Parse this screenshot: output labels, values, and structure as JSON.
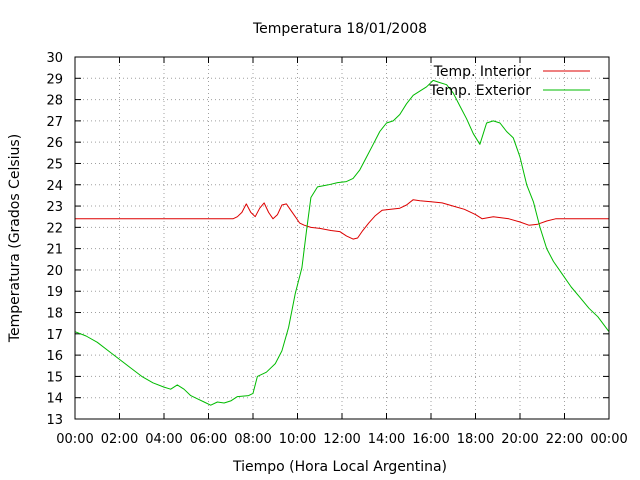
{
  "chart_data": {
    "type": "line",
    "title": "Temperatura 18/01/2008",
    "xlabel": "Tiempo (Hora Local Argentina)",
    "ylabel": "Temperatura (Grados Celsius)",
    "x_ticks": [
      "00:00",
      "02:00",
      "04:00",
      "06:00",
      "08:00",
      "10:00",
      "12:00",
      "14:00",
      "16:00",
      "18:00",
      "20:00",
      "22:00",
      "00:00"
    ],
    "xlim_hours": [
      0,
      24
    ],
    "ylim": [
      13,
      30
    ],
    "y_ticks": [
      13,
      14,
      15,
      16,
      17,
      18,
      19,
      20,
      21,
      22,
      23,
      24,
      25,
      26,
      27,
      28,
      29,
      30
    ],
    "grid": true,
    "legend_position": "top-right",
    "series": [
      {
        "name": "Temp. Interior",
        "color": "#dd0000",
        "points": [
          [
            0,
            22.4
          ],
          [
            7.1,
            22.4
          ],
          [
            7.3,
            22.5
          ],
          [
            7.5,
            22.7
          ],
          [
            7.7,
            23.1
          ],
          [
            7.9,
            22.7
          ],
          [
            8.1,
            22.5
          ],
          [
            8.3,
            22.9
          ],
          [
            8.5,
            23.15
          ],
          [
            8.7,
            22.7
          ],
          [
            8.9,
            22.4
          ],
          [
            9.1,
            22.6
          ],
          [
            9.3,
            23.05
          ],
          [
            9.5,
            23.1
          ],
          [
            9.7,
            22.8
          ],
          [
            9.9,
            22.5
          ],
          [
            10.1,
            22.2
          ],
          [
            10.3,
            22.1
          ],
          [
            10.6,
            22.0
          ],
          [
            11.0,
            21.95
          ],
          [
            11.5,
            21.85
          ],
          [
            11.9,
            21.8
          ],
          [
            12.2,
            21.6
          ],
          [
            12.5,
            21.45
          ],
          [
            12.7,
            21.5
          ],
          [
            12.9,
            21.8
          ],
          [
            13.2,
            22.2
          ],
          [
            13.5,
            22.55
          ],
          [
            13.8,
            22.8
          ],
          [
            14.2,
            22.85
          ],
          [
            14.6,
            22.9
          ],
          [
            14.9,
            23.05
          ],
          [
            15.2,
            23.3
          ],
          [
            15.5,
            23.25
          ],
          [
            16.0,
            23.2
          ],
          [
            16.5,
            23.15
          ],
          [
            17.0,
            23.0
          ],
          [
            17.5,
            22.85
          ],
          [
            18.0,
            22.6
          ],
          [
            18.3,
            22.4
          ],
          [
            18.8,
            22.5
          ],
          [
            19.5,
            22.4
          ],
          [
            20.0,
            22.25
          ],
          [
            20.4,
            22.1
          ],
          [
            20.8,
            22.15
          ],
          [
            21.2,
            22.3
          ],
          [
            21.6,
            22.4
          ],
          [
            24,
            22.4
          ]
        ]
      },
      {
        "name": "Temp. Exterior",
        "color": "#00bb00",
        "points": [
          [
            0,
            17.1
          ],
          [
            0.5,
            16.9
          ],
          [
            1.0,
            16.6
          ],
          [
            1.5,
            16.2
          ],
          [
            2.0,
            15.8
          ],
          [
            2.5,
            15.4
          ],
          [
            3.0,
            15.0
          ],
          [
            3.5,
            14.7
          ],
          [
            4.0,
            14.5
          ],
          [
            4.3,
            14.4
          ],
          [
            4.6,
            14.6
          ],
          [
            4.9,
            14.4
          ],
          [
            5.2,
            14.1
          ],
          [
            5.5,
            13.95
          ],
          [
            5.8,
            13.8
          ],
          [
            6.1,
            13.65
          ],
          [
            6.4,
            13.8
          ],
          [
            6.7,
            13.75
          ],
          [
            7.0,
            13.85
          ],
          [
            7.3,
            14.05
          ],
          [
            7.8,
            14.1
          ],
          [
            8.0,
            14.2
          ],
          [
            8.2,
            15.0
          ],
          [
            8.6,
            15.2
          ],
          [
            9.0,
            15.6
          ],
          [
            9.3,
            16.2
          ],
          [
            9.6,
            17.3
          ],
          [
            9.9,
            18.9
          ],
          [
            10.2,
            20.1
          ],
          [
            10.4,
            21.8
          ],
          [
            10.6,
            23.4
          ],
          [
            10.9,
            23.9
          ],
          [
            11.4,
            24.0
          ],
          [
            11.8,
            24.1
          ],
          [
            12.2,
            24.15
          ],
          [
            12.5,
            24.3
          ],
          [
            12.8,
            24.7
          ],
          [
            13.1,
            25.3
          ],
          [
            13.4,
            25.9
          ],
          [
            13.7,
            26.5
          ],
          [
            14.0,
            26.9
          ],
          [
            14.3,
            27.0
          ],
          [
            14.6,
            27.3
          ],
          [
            14.9,
            27.8
          ],
          [
            15.2,
            28.2
          ],
          [
            15.5,
            28.4
          ],
          [
            15.8,
            28.6
          ],
          [
            16.1,
            28.9
          ],
          [
            16.4,
            28.8
          ],
          [
            16.7,
            28.7
          ],
          [
            17.0,
            28.3
          ],
          [
            17.3,
            27.7
          ],
          [
            17.6,
            27.1
          ],
          [
            17.9,
            26.4
          ],
          [
            18.2,
            25.9
          ],
          [
            18.5,
            26.9
          ],
          [
            18.8,
            27.0
          ],
          [
            19.1,
            26.9
          ],
          [
            19.4,
            26.5
          ],
          [
            19.7,
            26.2
          ],
          [
            20.0,
            25.3
          ],
          [
            20.3,
            24.0
          ],
          [
            20.6,
            23.2
          ],
          [
            20.9,
            22.0
          ],
          [
            21.2,
            21.0
          ],
          [
            21.5,
            20.4
          ],
          [
            21.9,
            19.8
          ],
          [
            22.3,
            19.2
          ],
          [
            22.7,
            18.7
          ],
          [
            23.1,
            18.2
          ],
          [
            23.5,
            17.8
          ],
          [
            24.0,
            17.1
          ]
        ]
      }
    ]
  }
}
